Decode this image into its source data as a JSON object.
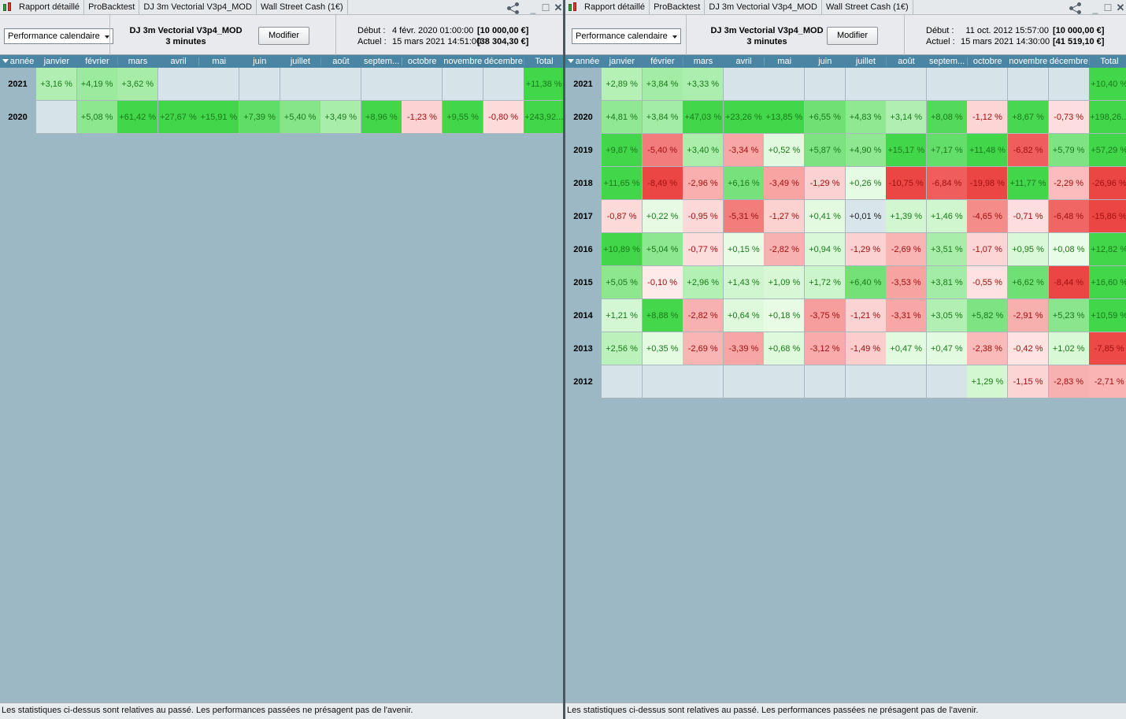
{
  "months": [
    "janvier",
    "février",
    "mars",
    "avril",
    "mai",
    "juin",
    "juillet",
    "août",
    "septem...",
    "octobre",
    "novembre",
    "décembre",
    "Total"
  ],
  "year_header": "année",
  "panes": [
    {
      "tabs": [
        "Rapport détaillé",
        "ProBacktest",
        "DJ 3m Vectorial V3p4_MOD",
        "Wall Street Cash (1€)"
      ],
      "dropdown": "Performance calendaire",
      "system_name": "DJ 3m Vectorial V3p4_MOD",
      "timeframe": "3 minutes",
      "modify_label": "Modifier",
      "start_label": "Début :",
      "start_date": "4 févr. 2020 01:00:00",
      "start_capital": "[10 000,00 €]",
      "current_label": "Actuel :",
      "current_date": "15 mars 2021 14:51:00",
      "current_capital": "[38 304,30 €]",
      "rows": [
        {
          "year": "2021",
          "values": [
            "+3,16 %",
            "+4,19 %",
            "+3,62 %",
            "",
            "",
            "",
            "",
            "",
            "",
            "",
            "",
            "",
            "+11,38 %"
          ]
        },
        {
          "year": "2020",
          "values": [
            "",
            "+5,08 %",
            "+61,42 %",
            "+27,67 %",
            "+15,91 %",
            "+7,39 %",
            "+5,40 %",
            "+3,49 %",
            "+8,96 %",
            "-1,23 %",
            "+9,55 %",
            "-0,80 %",
            "+243,92..."
          ]
        }
      ],
      "footer": "Les statistiques ci-dessus sont relatives au passé. Les performances passées ne présagent pas de l'avenir."
    },
    {
      "tabs": [
        "Rapport détaillé",
        "ProBacktest",
        "DJ 3m Vectorial V3p4_MOD",
        "Wall Street Cash (1€)"
      ],
      "dropdown": "Performance calendaire",
      "system_name": "DJ 3m Vectorial V3p4_MOD",
      "timeframe": "3 minutes",
      "modify_label": "Modifier",
      "start_label": "Début :",
      "start_date": "11 oct. 2012 15:57:00",
      "start_capital": "[10 000,00 €]",
      "current_label": "Actuel :",
      "current_date": "15 mars 2021 14:30:00",
      "current_capital": "[41 519,10 €]",
      "rows": [
        {
          "year": "2021",
          "values": [
            "+2,89 %",
            "+3,84 %",
            "+3,33 %",
            "",
            "",
            "",
            "",
            "",
            "",
            "",
            "",
            "",
            "+10,40 %"
          ]
        },
        {
          "year": "2020",
          "values": [
            "+4,81 %",
            "+3,84 %",
            "+47,03 %",
            "+23,26 %",
            "+13,85 %",
            "+6,55 %",
            "+4,83 %",
            "+3,14 %",
            "+8,08 %",
            "-1,12 %",
            "+8,67 %",
            "-0,73 %",
            "+198,26..."
          ]
        },
        {
          "year": "2019",
          "values": [
            "+9,87 %",
            "-5,40 %",
            "+3,40 %",
            "-3,34 %",
            "+0,52 %",
            "+5,87 %",
            "+4,90 %",
            "+15,17 %",
            "+7,17 %",
            "+11,48 %",
            "-6,82 %",
            "+5,79 %",
            "+57,29 %"
          ]
        },
        {
          "year": "2018",
          "values": [
            "+11,65 %",
            "-8,49 %",
            "-2,96 %",
            "+6,16 %",
            "-3,49 %",
            "-1,29 %",
            "+0,26 %",
            "-10,75 %",
            "-6,84 %",
            "-19,98 %",
            "+11,77 %",
            "-2,29 %",
            "-26,96 %"
          ]
        },
        {
          "year": "2017",
          "values": [
            "-0,87 %",
            "+0,22 %",
            "-0,95 %",
            "-5,31 %",
            "-1,27 %",
            "+0,41 %",
            "+0,01 %",
            "+1,39 %",
            "+1,46 %",
            "-4,65 %",
            "-0,71 %",
            "-6,48 %",
            "-15,86 %"
          ]
        },
        {
          "year": "2016",
          "values": [
            "+10,89 %",
            "+5,04 %",
            "-0,77 %",
            "+0,15 %",
            "-2,82 %",
            "+0,94 %",
            "-1,29 %",
            "-2,69 %",
            "+3,51 %",
            "-1,07 %",
            "+0,95 %",
            "+0,08 %",
            "+12,82 %"
          ]
        },
        {
          "year": "2015",
          "values": [
            "+5,05 %",
            "-0,10 %",
            "+2,96 %",
            "+1,43 %",
            "+1,09 %",
            "+1,72 %",
            "+6,40 %",
            "-3,53 %",
            "+3,81 %",
            "-0,55 %",
            "+6,62 %",
            "-8,44 %",
            "+16,60 %"
          ]
        },
        {
          "year": "2014",
          "values": [
            "+1,21 %",
            "+8,88 %",
            "-2,82 %",
            "+0,64 %",
            "+0,18 %",
            "-3,75 %",
            "-1,21 %",
            "-3,31 %",
            "+3,05 %",
            "+5,82 %",
            "-2,91 %",
            "+5,23 %",
            "+10,59 %"
          ]
        },
        {
          "year": "2013",
          "values": [
            "+2,56 %",
            "+0,35 %",
            "-2,69 %",
            "-3,39 %",
            "+0,68 %",
            "-3,12 %",
            "-1,49 %",
            "+0,47 %",
            "+0,47 %",
            "-2,38 %",
            "-0,42 %",
            "+1,02 %",
            "-7,85 %"
          ]
        },
        {
          "year": "2012",
          "values": [
            "",
            "",
            "",
            "",
            "",
            "",
            "",
            "",
            "",
            "+1,29 %",
            "-1,15 %",
            "-2,83 %",
            "-2,71 %"
          ]
        }
      ],
      "footer": "Les statistiques ci-dessus sont relatives au passé. Les performances passées ne présagent pas de l'avenir."
    }
  ],
  "colors": {
    "header_bg": "#4a86a4",
    "pane_bg": "#9bb8c4",
    "empty_cell": "#d6e3e8",
    "pos_text": "#1a7a1a",
    "neg_text": "#a01010"
  },
  "icons": {
    "tab": "candlestick-icon",
    "share": "share-icon",
    "minimize": "minimize-icon",
    "maximize": "maximize-icon",
    "close": "close-icon",
    "sort": "sort-triangle-icon"
  }
}
